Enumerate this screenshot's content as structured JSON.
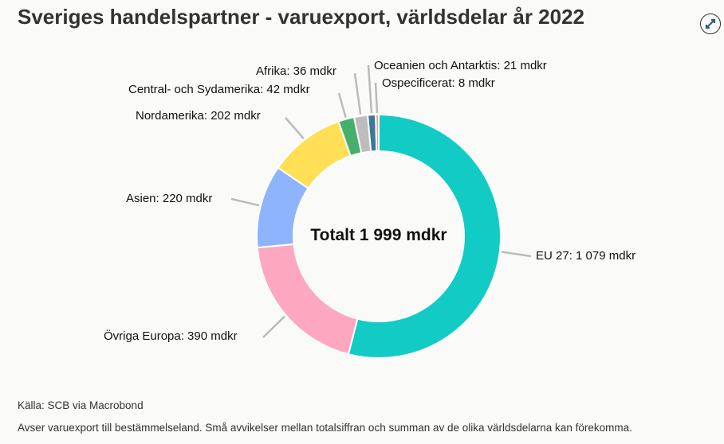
{
  "title": "Sveriges handelspartner - varuexport, världsdelar år 2022",
  "expand_icon": "expand-arrows-icon",
  "chart_data": {
    "type": "pie",
    "variant": "donut",
    "title": "Sveriges handelspartner - varuexport, världsdelar år 2022",
    "center_label": "Totalt 1 999 mdkr",
    "unit": "mdkr",
    "slices": [
      {
        "name": "EU 27",
        "value": 1079,
        "label": "EU 27: 1 079 mdkr",
        "color": "#12cbc4"
      },
      {
        "name": "Övriga Europa",
        "value": 390,
        "label": "Övriga Europa: 390 mdkr",
        "color": "#fda7c1"
      },
      {
        "name": "Asien",
        "value": 220,
        "label": "Asien: 220 mdkr",
        "color": "#8db4fd"
      },
      {
        "name": "Nordamerika",
        "value": 202,
        "label": "Nordamerika: 202 mdkr",
        "color": "#ffdf55"
      },
      {
        "name": "Central- och Sydamerika",
        "value": 42,
        "label": "Central- och Sydamerika: 42 mdkr",
        "color": "#43b06b"
      },
      {
        "name": "Afrika",
        "value": 36,
        "label": "Afrika: 36 mdkr",
        "color": "#bdbdbd"
      },
      {
        "name": "Oceanien och Antarktis",
        "value": 21,
        "label": "Oceanien och Antarktis: 21 mdkr",
        "color": "#3a789c"
      },
      {
        "name": "Ospecificerat",
        "value": 8,
        "label": "Ospecificerat: 8 mdkr",
        "color": "#f0a070"
      }
    ]
  },
  "source": "Källa: SCB via Macrobond",
  "note": "Avser varuexport till bestämmelseland. Små avvikelser mellan totalsiffran och summan av de olika världsdelarna kan förekomma."
}
